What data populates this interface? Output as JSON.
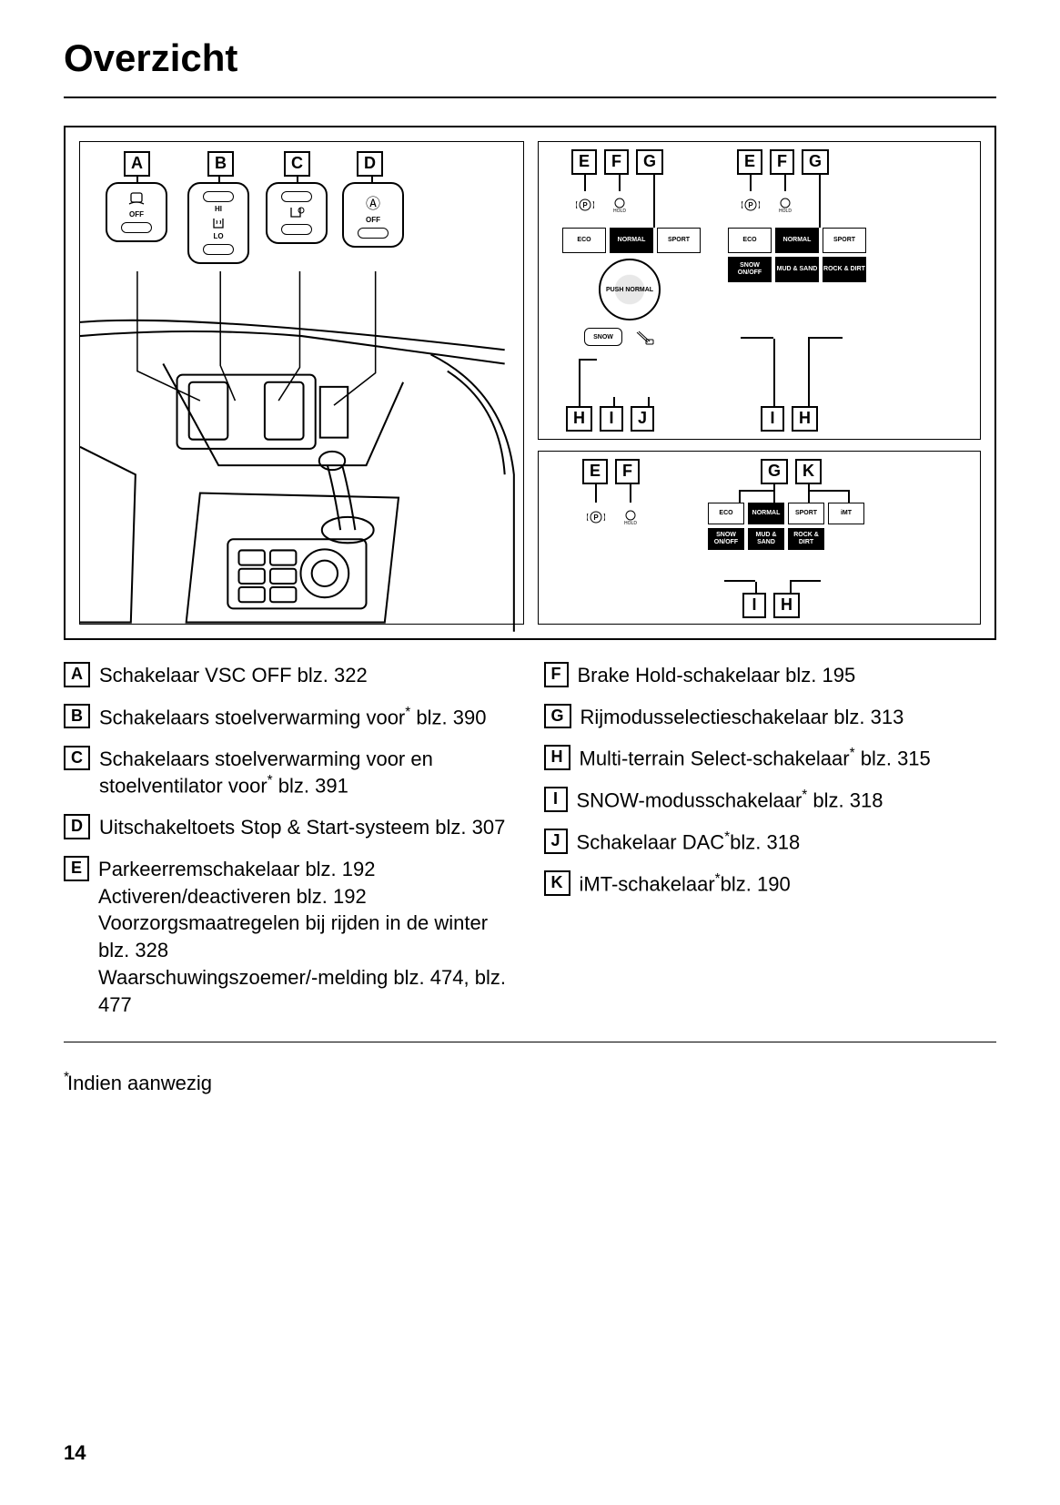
{
  "title": "Overzicht",
  "page_number": "14",
  "footnote": "*Indien aanwezig",
  "labels": [
    "A",
    "B",
    "C",
    "D",
    "E",
    "F",
    "G",
    "H",
    "I",
    "J",
    "K"
  ],
  "left_items": [
    {
      "label": "A",
      "text": "Schakelaar VSC OFF blz. 322"
    },
    {
      "label": "B",
      "text": "Schakelaars stoelverwarming voor* blz. 390"
    },
    {
      "label": "C",
      "text": "Schakelaars stoelverwarming voor en stoelventilator voor* blz. 391"
    },
    {
      "label": "D",
      "text": "Uitschakeltoets Stop & Start-systeem blz. 307"
    },
    {
      "label": "E",
      "text": "Parkeerremschakelaar blz. 192\nActiveren/deactiveren blz. 192\nVoorzorgsmaatregelen bij rijden in de winter blz. 328\nWaarschuwingszoemer/-melding blz. 474, blz. 477"
    }
  ],
  "right_items": [
    {
      "label": "F",
      "text": "Brake Hold-schakelaar blz. 195"
    },
    {
      "label": "G",
      "text": "Rijmodusselectieschakelaar blz. 313"
    },
    {
      "label": "H",
      "text": "Multi-terrain Select-schakelaar* blz. 315"
    },
    {
      "label": "I",
      "text": "SNOW-modusschakelaar* blz. 318"
    },
    {
      "label": "J",
      "text": "Schakelaar DAC*blz. 318"
    },
    {
      "label": "K",
      "text": "iMT-schakelaar*blz. 190"
    }
  ],
  "panel_text": {
    "eco": "ECO",
    "normal": "NORMAL",
    "sport": "SPORT",
    "snow": "SNOW",
    "snow_onoff": "SNOW ON/OFF",
    "mud_sand": "MUD & SAND",
    "rock_dirt": "ROCK & DIRT",
    "imt": "iMT",
    "push_normal": "PUSH NORMAL",
    "hold": "HOLD",
    "hi": "HI",
    "lo": "LO",
    "off": "OFF",
    "a_symbol": "Ⓐ"
  }
}
